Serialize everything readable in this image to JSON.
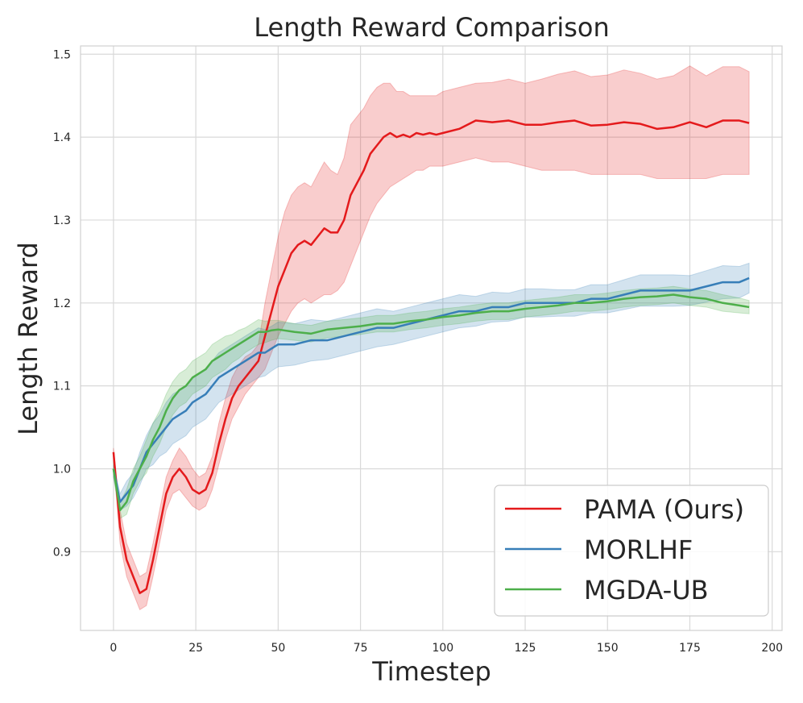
{
  "chart_data": {
    "type": "line",
    "title": "Length Reward Comparison",
    "xlabel": "Timestep",
    "ylabel": "Length Reward",
    "xlim": [
      -10,
      203
    ],
    "ylim": [
      0.805,
      1.51
    ],
    "xticks": [
      0,
      25,
      50,
      75,
      100,
      125,
      150,
      175,
      200
    ],
    "yticks": [
      0.9,
      1.0,
      1.1,
      1.2,
      1.3,
      1.4,
      1.5
    ],
    "xtick_labels": [
      "0",
      "25",
      "50",
      "75",
      "100",
      "125",
      "150",
      "175",
      "200"
    ],
    "ytick_labels": [
      "0.9",
      "1.0",
      "1.1",
      "1.2",
      "1.3",
      "1.4",
      "1.5"
    ],
    "grid": true,
    "legend_position": "lower-right",
    "series": [
      {
        "name": "PAMA (Ours)",
        "color": "#e41a1c",
        "x": [
          0,
          2,
          4,
          6,
          8,
          10,
          12,
          14,
          16,
          18,
          20,
          22,
          24,
          26,
          28,
          30,
          32,
          34,
          36,
          38,
          40,
          42,
          44,
          46,
          48,
          50,
          52,
          54,
          56,
          58,
          60,
          62,
          64,
          66,
          68,
          70,
          72,
          74,
          76,
          78,
          80,
          82,
          84,
          86,
          88,
          90,
          92,
          94,
          96,
          98,
          100,
          105,
          110,
          115,
          120,
          125,
          130,
          135,
          140,
          145,
          150,
          155,
          160,
          165,
          170,
          175,
          180,
          185,
          190,
          193
        ],
        "y": [
          1.02,
          0.93,
          0.89,
          0.87,
          0.85,
          0.855,
          0.89,
          0.93,
          0.97,
          0.99,
          1.0,
          0.99,
          0.975,
          0.97,
          0.975,
          0.995,
          1.03,
          1.06,
          1.085,
          1.1,
          1.11,
          1.12,
          1.13,
          1.16,
          1.19,
          1.22,
          1.24,
          1.26,
          1.27,
          1.275,
          1.27,
          1.28,
          1.29,
          1.285,
          1.285,
          1.3,
          1.33,
          1.345,
          1.36,
          1.38,
          1.39,
          1.4,
          1.405,
          1.4,
          1.403,
          1.4,
          1.405,
          1.403,
          1.405,
          1.403,
          1.405,
          1.41,
          1.42,
          1.418,
          1.42,
          1.415,
          1.415,
          1.418,
          1.42,
          1.414,
          1.415,
          1.418,
          1.416,
          1.41,
          1.412,
          1.418,
          1.412,
          1.42,
          1.42,
          1.417
        ],
        "lower": [
          1.01,
          0.91,
          0.87,
          0.85,
          0.83,
          0.835,
          0.87,
          0.91,
          0.95,
          0.97,
          0.975,
          0.965,
          0.955,
          0.95,
          0.955,
          0.975,
          1.005,
          1.035,
          1.06,
          1.075,
          1.09,
          1.1,
          1.11,
          1.12,
          1.14,
          1.16,
          1.175,
          1.19,
          1.2,
          1.205,
          1.2,
          1.205,
          1.21,
          1.21,
          1.215,
          1.225,
          1.245,
          1.265,
          1.285,
          1.305,
          1.32,
          1.33,
          1.34,
          1.345,
          1.35,
          1.355,
          1.36,
          1.36,
          1.365,
          1.365,
          1.365,
          1.37,
          1.375,
          1.37,
          1.37,
          1.365,
          1.36,
          1.36,
          1.36,
          1.355,
          1.355,
          1.355,
          1.355,
          1.35,
          1.35,
          1.35,
          1.35,
          1.355,
          1.355,
          1.355
        ],
        "upper": [
          1.025,
          0.95,
          0.91,
          0.89,
          0.87,
          0.875,
          0.91,
          0.95,
          0.99,
          1.01,
          1.025,
          1.015,
          1.0,
          0.99,
          0.995,
          1.015,
          1.055,
          1.085,
          1.11,
          1.125,
          1.135,
          1.14,
          1.15,
          1.2,
          1.24,
          1.28,
          1.31,
          1.33,
          1.34,
          1.345,
          1.34,
          1.355,
          1.37,
          1.36,
          1.355,
          1.375,
          1.415,
          1.425,
          1.435,
          1.45,
          1.46,
          1.465,
          1.465,
          1.455,
          1.455,
          1.45,
          1.45,
          1.45,
          1.45,
          1.45,
          1.455,
          1.46,
          1.465,
          1.466,
          1.47,
          1.465,
          1.47,
          1.476,
          1.48,
          1.473,
          1.475,
          1.481,
          1.477,
          1.47,
          1.474,
          1.486,
          1.474,
          1.485,
          1.485,
          1.479
        ]
      },
      {
        "name": "MORLHF",
        "color": "#377eb8",
        "x": [
          0,
          2,
          4,
          6,
          8,
          10,
          12,
          14,
          16,
          18,
          20,
          22,
          24,
          26,
          28,
          30,
          32,
          34,
          36,
          38,
          40,
          42,
          44,
          46,
          48,
          50,
          55,
          60,
          65,
          70,
          75,
          80,
          85,
          90,
          95,
          100,
          105,
          110,
          115,
          120,
          125,
          130,
          135,
          140,
          145,
          150,
          155,
          160,
          165,
          170,
          175,
          180,
          185,
          190,
          193
        ],
        "y": [
          1.0,
          0.96,
          0.97,
          0.98,
          1.0,
          1.02,
          1.03,
          1.04,
          1.05,
          1.06,
          1.065,
          1.07,
          1.08,
          1.085,
          1.09,
          1.1,
          1.11,
          1.115,
          1.12,
          1.125,
          1.13,
          1.135,
          1.14,
          1.14,
          1.145,
          1.15,
          1.15,
          1.155,
          1.155,
          1.16,
          1.165,
          1.17,
          1.17,
          1.175,
          1.18,
          1.185,
          1.19,
          1.19,
          1.195,
          1.195,
          1.2,
          1.2,
          1.2,
          1.2,
          1.205,
          1.205,
          1.21,
          1.215,
          1.215,
          1.215,
          1.215,
          1.22,
          1.225,
          1.225,
          1.23
        ],
        "lower": [
          0.99,
          0.95,
          0.955,
          0.965,
          0.98,
          1.0,
          1.005,
          1.015,
          1.02,
          1.03,
          1.035,
          1.04,
          1.05,
          1.055,
          1.06,
          1.07,
          1.08,
          1.085,
          1.09,
          1.095,
          1.1,
          1.105,
          1.11,
          1.112,
          1.118,
          1.123,
          1.125,
          1.13,
          1.132,
          1.137,
          1.142,
          1.147,
          1.15,
          1.155,
          1.16,
          1.165,
          1.17,
          1.172,
          1.177,
          1.178,
          1.183,
          1.183,
          1.184,
          1.184,
          1.188,
          1.188,
          1.192,
          1.196,
          1.196,
          1.196,
          1.197,
          1.201,
          1.205,
          1.206,
          1.212
        ],
        "upper": [
          1.005,
          0.97,
          0.985,
          0.995,
          1.02,
          1.04,
          1.055,
          1.065,
          1.08,
          1.09,
          1.095,
          1.1,
          1.11,
          1.115,
          1.12,
          1.13,
          1.14,
          1.145,
          1.15,
          1.155,
          1.16,
          1.165,
          1.17,
          1.168,
          1.172,
          1.177,
          1.175,
          1.18,
          1.178,
          1.183,
          1.188,
          1.193,
          1.19,
          1.195,
          1.2,
          1.205,
          1.21,
          1.208,
          1.213,
          1.212,
          1.217,
          1.217,
          1.216,
          1.216,
          1.222,
          1.222,
          1.228,
          1.234,
          1.234,
          1.234,
          1.233,
          1.239,
          1.245,
          1.244,
          1.248
        ]
      },
      {
        "name": "MGDA-UB",
        "color": "#4daf4a",
        "x": [
          0,
          2,
          4,
          6,
          8,
          10,
          12,
          14,
          16,
          18,
          20,
          22,
          24,
          26,
          28,
          30,
          32,
          34,
          36,
          38,
          40,
          42,
          44,
          46,
          48,
          50,
          55,
          60,
          65,
          70,
          75,
          80,
          85,
          90,
          95,
          100,
          105,
          110,
          115,
          120,
          125,
          130,
          135,
          140,
          145,
          150,
          155,
          160,
          165,
          170,
          175,
          180,
          185,
          190,
          193
        ],
        "y": [
          1.0,
          0.95,
          0.96,
          0.985,
          1.0,
          1.015,
          1.035,
          1.05,
          1.07,
          1.085,
          1.095,
          1.1,
          1.11,
          1.115,
          1.12,
          1.13,
          1.135,
          1.14,
          1.145,
          1.15,
          1.155,
          1.16,
          1.165,
          1.165,
          1.167,
          1.168,
          1.165,
          1.163,
          1.168,
          1.17,
          1.172,
          1.175,
          1.175,
          1.178,
          1.18,
          1.183,
          1.185,
          1.188,
          1.19,
          1.19,
          1.193,
          1.195,
          1.197,
          1.2,
          1.2,
          1.202,
          1.205,
          1.207,
          1.208,
          1.21,
          1.207,
          1.205,
          1.2,
          1.197,
          1.195
        ],
        "lower": [
          0.99,
          0.94,
          0.945,
          0.97,
          0.985,
          0.995,
          1.015,
          1.03,
          1.05,
          1.065,
          1.075,
          1.08,
          1.09,
          1.095,
          1.1,
          1.11,
          1.115,
          1.12,
          1.128,
          1.133,
          1.14,
          1.145,
          1.15,
          1.152,
          1.155,
          1.157,
          1.155,
          1.153,
          1.158,
          1.16,
          1.162,
          1.165,
          1.165,
          1.168,
          1.17,
          1.173,
          1.175,
          1.178,
          1.18,
          1.18,
          1.183,
          1.185,
          1.187,
          1.19,
          1.19,
          1.192,
          1.195,
          1.197,
          1.198,
          1.2,
          1.197,
          1.195,
          1.19,
          1.188,
          1.187
        ],
        "upper": [
          1.01,
          0.96,
          0.975,
          1.0,
          1.015,
          1.035,
          1.055,
          1.07,
          1.09,
          1.105,
          1.115,
          1.12,
          1.13,
          1.135,
          1.14,
          1.15,
          1.155,
          1.16,
          1.162,
          1.167,
          1.17,
          1.175,
          1.18,
          1.178,
          1.179,
          1.179,
          1.175,
          1.173,
          1.178,
          1.18,
          1.182,
          1.185,
          1.185,
          1.188,
          1.19,
          1.193,
          1.195,
          1.198,
          1.2,
          1.2,
          1.203,
          1.205,
          1.207,
          1.21,
          1.21,
          1.212,
          1.215,
          1.217,
          1.218,
          1.22,
          1.217,
          1.215,
          1.21,
          1.206,
          1.203
        ]
      }
    ]
  }
}
